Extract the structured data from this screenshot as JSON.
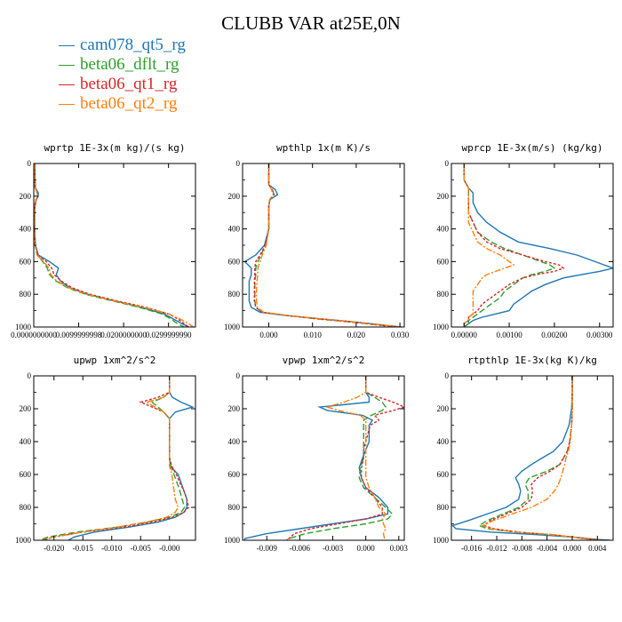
{
  "title": "CLUBB VAR at25E,0N",
  "legend": [
    {
      "label": "cam078_qt5_rg",
      "color": "#1f77b4"
    },
    {
      "label": "beta06_dflt_rg",
      "color": "#2ca02c"
    },
    {
      "label": "beta06_qt1_rg",
      "color": "#d62728"
    },
    {
      "label": "beta06_qt2_rg",
      "color": "#ff7f0e"
    }
  ],
  "chart_data": [
    {
      "type": "line",
      "title": "wprtp  1E-3x(m kg)/(s kg)",
      "xlim": [
        0.0,
        0.036
      ],
      "ylim": [
        1000,
        0
      ],
      "xticks": [
        0.0,
        0.01,
        0.02,
        0.03
      ],
      "xticklabels": [
        "0.0000000000",
        "0.0099999998",
        "0.0200000000",
        "0.0299999990"
      ],
      "yticks": [
        0,
        200,
        400,
        600,
        800,
        1000
      ],
      "y": [
        0,
        100,
        150,
        180,
        200,
        220,
        260,
        300,
        400,
        500,
        560,
        600,
        640,
        680,
        720,
        760,
        800,
        840,
        880,
        920,
        950,
        980,
        1000
      ],
      "series": [
        {
          "name": "cam078_qt5_rg",
          "x": [
            0.0003,
            0.0003,
            0.0004,
            0.001,
            0.001,
            0.0006,
            0.0003,
            0.0002,
            0.0002,
            0.0004,
            0.001,
            0.0035,
            0.0055,
            0.005,
            0.006,
            0.008,
            0.012,
            0.018,
            0.024,
            0.029,
            0.031,
            0.033,
            0.0345
          ]
        },
        {
          "name": "beta06_dflt_rg",
          "x": [
            0.0002,
            0.0002,
            0.0003,
            0.0008,
            0.0009,
            0.0005,
            0.0002,
            0.0001,
            0.0001,
            0.0003,
            0.0008,
            0.002,
            0.003,
            0.0035,
            0.005,
            0.0075,
            0.0115,
            0.0175,
            0.0235,
            0.0285,
            0.0305,
            0.032,
            0.0335
          ]
        },
        {
          "name": "beta06_qt1_rg",
          "x": [
            0.0002,
            0.0002,
            0.0003,
            0.0008,
            0.0009,
            0.0005,
            0.0002,
            0.0001,
            0.0001,
            0.0003,
            0.0009,
            0.0028,
            0.004,
            0.0045,
            0.0062,
            0.0085,
            0.0125,
            0.0185,
            0.025,
            0.03,
            0.032,
            0.0335,
            0.0345
          ]
        },
        {
          "name": "beta06_qt2_rg",
          "x": [
            0.0002,
            0.0002,
            0.0003,
            0.0008,
            0.0009,
            0.0005,
            0.0002,
            0.0001,
            0.0001,
            0.0003,
            0.0007,
            0.0022,
            0.0034,
            0.0038,
            0.0052,
            0.0078,
            0.0118,
            0.0178,
            0.0245,
            0.03,
            0.0325,
            0.0345,
            0.0355
          ]
        }
      ]
    },
    {
      "type": "line",
      "title": "wpthlp  1x(m K)/s",
      "xlim": [
        -0.006,
        0.031
      ],
      "ylim": [
        1000,
        0
      ],
      "xticks": [
        0.0,
        0.01,
        0.02,
        0.03
      ],
      "xticklabels": [
        "0.000",
        "0.010",
        "0.020",
        "0.030"
      ],
      "yticks": [
        0,
        200,
        400,
        600,
        800,
        1000
      ],
      "y": [
        0,
        100,
        130,
        160,
        190,
        220,
        260,
        300,
        400,
        500,
        560,
        600,
        640,
        680,
        720,
        780,
        840,
        880,
        910,
        930,
        950,
        970,
        990,
        1000
      ],
      "series": [
        {
          "name": "cam078_qt5_rg",
          "x": [
            0.0,
            0.0,
            0.0,
            0.0015,
            0.002,
            0.0003,
            0.0,
            0.0,
            0.0,
            -0.001,
            -0.003,
            -0.0055,
            -0.004,
            -0.004,
            -0.0045,
            -0.0045,
            -0.0045,
            -0.004,
            -0.002,
            0.004,
            0.012,
            0.02,
            0.027,
            0.03
          ]
        },
        {
          "name": "beta06_dflt_rg",
          "x": [
            0.0,
            0.0,
            0.0,
            0.0008,
            0.0012,
            0.0002,
            0.0,
            0.0,
            0.0,
            -0.0008,
            -0.0018,
            -0.0025,
            -0.003,
            -0.003,
            -0.0032,
            -0.0032,
            -0.0032,
            -0.003,
            -0.0015,
            0.004,
            0.011,
            0.019,
            0.026,
            0.029
          ]
        },
        {
          "name": "beta06_qt1_rg",
          "x": [
            0.0,
            0.0,
            0.0,
            0.0008,
            0.0012,
            0.0002,
            0.0,
            0.0,
            0.0,
            -0.0008,
            -0.002,
            -0.003,
            -0.0032,
            -0.0032,
            -0.0033,
            -0.0033,
            -0.0033,
            -0.003,
            -0.0015,
            0.004,
            0.011,
            0.019,
            0.026,
            0.029
          ]
        },
        {
          "name": "beta06_qt2_rg",
          "x": [
            0.0,
            0.0,
            0.0,
            0.0006,
            0.001,
            0.0002,
            0.0,
            0.0,
            0.0,
            -0.0006,
            -0.0015,
            -0.002,
            -0.0025,
            -0.0025,
            -0.0027,
            -0.0028,
            -0.0028,
            -0.0026,
            -0.0012,
            0.0045,
            0.012,
            0.02,
            0.027,
            0.0305
          ]
        }
      ]
    },
    {
      "type": "line",
      "title": "wprcp  1E-3x(m/s) (kg/kg)",
      "xlim": [
        -0.00028,
        0.0033
      ],
      "ylim": [
        1000,
        0
      ],
      "xticks": [
        0.0,
        0.001,
        0.002,
        0.003
      ],
      "xticklabels": [
        "0.00000",
        "0.00100",
        "0.00200",
        "0.00300"
      ],
      "yticks": [
        0,
        200,
        400,
        600,
        800,
        1000
      ],
      "y": [
        0,
        100,
        150,
        180,
        200,
        240,
        300,
        360,
        420,
        480,
        520,
        560,
        600,
        620,
        640,
        660,
        680,
        700,
        740,
        780,
        820,
        860,
        900,
        920,
        940,
        960,
        980,
        1000
      ],
      "series": [
        {
          "name": "cam078_qt5_rg",
          "x": [
            0.0,
            0.0,
            0.0001,
            0.0002,
            0.0002,
            0.0002,
            0.0003,
            0.0005,
            0.0008,
            0.0012,
            0.0019,
            0.0025,
            0.0029,
            0.0031,
            0.0033,
            0.003,
            0.0026,
            0.0022,
            0.0018,
            0.0015,
            0.0013,
            0.0011,
            0.001,
            0.0007,
            0.0004,
            0.0002,
            0.0001,
            0.0
          ]
        },
        {
          "name": "beta06_dflt_rg",
          "x": [
            0.0,
            0.0,
            0.0001,
            0.0001,
            0.0001,
            0.0001,
            0.0001,
            0.0002,
            0.0003,
            0.0006,
            0.0009,
            0.0013,
            0.0017,
            0.0019,
            0.002,
            0.0018,
            0.0015,
            0.0013,
            0.0011,
            0.0009,
            0.0008,
            0.0006,
            0.0004,
            0.0003,
            0.0002,
            0.0001,
            0.0001,
            0.0
          ]
        },
        {
          "name": "beta06_qt1_rg",
          "x": [
            0.0,
            0.0,
            0.0001,
            0.0001,
            0.0001,
            0.0001,
            0.0001,
            0.0002,
            0.0003,
            0.0005,
            0.0008,
            0.0013,
            0.0018,
            0.0021,
            0.0022,
            0.002,
            0.0016,
            0.0013,
            0.001,
            0.0008,
            0.0006,
            0.0004,
            0.0003,
            0.0002,
            0.0001,
            0.0001,
            0.0,
            0.0
          ]
        },
        {
          "name": "beta06_qt2_rg",
          "x": [
            0.0,
            0.0,
            0.0001,
            0.0001,
            0.0001,
            0.0001,
            0.0001,
            0.0001,
            0.0002,
            0.0003,
            0.0005,
            0.0008,
            0.001,
            0.0011,
            0.0009,
            0.0007,
            0.0005,
            0.0004,
            0.0003,
            0.0002,
            0.0002,
            0.0002,
            0.0002,
            0.0002,
            0.0001,
            0.0001,
            0.0,
            0.0
          ]
        }
      ]
    },
    {
      "type": "line",
      "title": "upwp  1xm^2/s^2",
      "xlim": [
        -0.0235,
        0.0045
      ],
      "ylim": [
        1000,
        0
      ],
      "xticks": [
        -0.02,
        -0.015,
        -0.01,
        -0.005,
        0.0
      ],
      "xticklabels": [
        "-0.020",
        "-0.015",
        "-0.010",
        "-0.005",
        "-0.000"
      ],
      "yticks": [
        0,
        200,
        400,
        600,
        800,
        1000
      ],
      "y": [
        0,
        100,
        130,
        160,
        190,
        220,
        260,
        300,
        350,
        400,
        450,
        500,
        550,
        600,
        650,
        700,
        750,
        800,
        830,
        860,
        890,
        920,
        950,
        980,
        1000
      ],
      "series": [
        {
          "name": "cam078_qt5_rg",
          "x": [
            0.0,
            0.0,
            0.0005,
            0.002,
            0.004,
            0.001,
            0.0,
            0.0,
            0.0,
            0.0,
            0.0,
            0.0,
            0.0002,
            0.0015,
            0.002,
            0.0025,
            0.003,
            0.003,
            0.0025,
            0.001,
            -0.002,
            -0.007,
            -0.013,
            -0.0165,
            -0.0175
          ]
        },
        {
          "name": "beta06_dflt_rg",
          "x": [
            0.0,
            0.0,
            -0.001,
            -0.003,
            -0.002,
            -0.001,
            0.0,
            0.0,
            0.0,
            0.0,
            0.0,
            0.0,
            0.0002,
            0.0008,
            0.0013,
            0.0018,
            0.0022,
            0.0026,
            0.002,
            0.0,
            -0.004,
            -0.009,
            -0.016,
            -0.021,
            -0.0225
          ]
        },
        {
          "name": "beta06_qt1_rg",
          "x": [
            0.0,
            0.0,
            -0.002,
            -0.005,
            -0.003,
            -0.001,
            0.0,
            0.0,
            0.0,
            0.0,
            0.0,
            0.0,
            0.0004,
            0.0012,
            0.0018,
            0.0025,
            0.003,
            0.0033,
            0.0025,
            0.0005,
            -0.003,
            -0.008,
            -0.015,
            -0.02,
            -0.022
          ]
        },
        {
          "name": "beta06_qt2_rg",
          "x": [
            0.0,
            0.0,
            -0.001,
            -0.004,
            -0.0025,
            -0.001,
            0.0,
            0.0,
            0.0,
            0.0,
            0.0,
            0.0,
            0.0,
            0.0004,
            0.0006,
            0.0008,
            0.001,
            0.0015,
            0.001,
            -0.0005,
            -0.004,
            -0.009,
            -0.015,
            -0.02,
            -0.022
          ]
        }
      ]
    },
    {
      "type": "line",
      "title": "vpwp  1xm^2/s^2",
      "xlim": [
        -0.0112,
        0.0035
      ],
      "ylim": [
        1000,
        0
      ],
      "xticks": [
        -0.009,
        -0.006,
        -0.003,
        0.0,
        0.003
      ],
      "xticklabels": [
        "-0.009",
        "-0.006",
        "-0.003",
        "0.000",
        "0.003"
      ],
      "yticks": [
        0,
        200,
        400,
        600,
        800,
        1000
      ],
      "y": [
        0,
        100,
        130,
        160,
        190,
        210,
        240,
        270,
        300,
        350,
        400,
        450,
        500,
        560,
        620,
        680,
        740,
        800,
        840,
        870,
        900,
        930,
        960,
        990,
        1000
      ],
      "series": [
        {
          "name": "cam078_qt5_rg",
          "x": [
            0.0,
            0.0,
            0.0003,
            0.0003,
            -0.0042,
            -0.0035,
            -0.0003,
            0.0006,
            0.0003,
            0.0003,
            0.0003,
            0.0,
            -0.0003,
            -0.0006,
            -0.0004,
            0.0,
            0.0012,
            0.002,
            0.002,
            0.0,
            -0.003,
            -0.006,
            -0.009,
            -0.011,
            -0.011
          ]
        },
        {
          "name": "beta06_dflt_rg",
          "x": [
            0.0,
            0.0,
            0.0008,
            0.0015,
            0.0018,
            0.0015,
            0.0005,
            -0.0002,
            -0.0002,
            -0.0002,
            -0.0002,
            -0.0002,
            -0.0002,
            -0.0005,
            -0.0006,
            -0.0002,
            0.0008,
            0.0018,
            0.0024,
            0.002,
            0.0,
            -0.003,
            -0.0055,
            -0.007,
            -0.0072
          ]
        },
        {
          "name": "beta06_qt1_rg",
          "x": [
            0.0,
            0.0,
            0.0012,
            0.0025,
            0.0035,
            0.0025,
            0.0008,
            0.0012,
            0.0004,
            0.0002,
            0.0,
            -0.0002,
            -0.0002,
            -0.0004,
            -0.0004,
            0.0,
            0.0008,
            0.0015,
            0.0015,
            0.0,
            -0.0025,
            -0.005,
            -0.0065,
            -0.007,
            -0.007
          ]
        },
        {
          "name": "beta06_qt2_rg",
          "x": [
            0.0,
            0.0,
            -0.0008,
            -0.002,
            -0.0035,
            -0.0025,
            -0.0005,
            0.0,
            0.0,
            0.0,
            0.0,
            0.0,
            0.0,
            0.0,
            0.0,
            0.0003,
            0.0008,
            0.0012,
            0.0018,
            0.0015,
            0.0016,
            0.0018,
            0.0016,
            0.0017,
            0.0017
          ]
        }
      ]
    },
    {
      "type": "line",
      "title": "rtpthlp  1E-3x(kg K)/kg",
      "xlim": [
        -0.0192,
        0.0065
      ],
      "ylim": [
        1000,
        0
      ],
      "xticks": [
        -0.016,
        -0.012,
        -0.008,
        -0.004,
        0.0,
        0.004
      ],
      "xticklabels": [
        "-0.016",
        "-0.012",
        "-0.008",
        "-0.004",
        "0.000",
        "0.004"
      ],
      "yticks": [
        0,
        200,
        400,
        600,
        800,
        1000
      ],
      "y": [
        0,
        100,
        200,
        300,
        400,
        460,
        500,
        540,
        580,
        620,
        660,
        700,
        750,
        800,
        840,
        880,
        910,
        930,
        950,
        965,
        980,
        995,
        1000
      ],
      "series": [
        {
          "name": "cam078_qt5_rg",
          "x": [
            0.0,
            0.0,
            -0.0001,
            -0.0005,
            -0.0015,
            -0.003,
            -0.0048,
            -0.0065,
            -0.008,
            -0.009,
            -0.0085,
            -0.0082,
            -0.0085,
            -0.0105,
            -0.0135,
            -0.0165,
            -0.019,
            -0.0185,
            -0.013,
            -0.006,
            0.0,
            0.004,
            0.006
          ]
        },
        {
          "name": "beta06_dflt_rg",
          "x": [
            0.0,
            0.0,
            0.0,
            -0.0001,
            -0.0004,
            -0.0008,
            -0.0014,
            -0.002,
            -0.004,
            -0.0068,
            -0.0075,
            -0.007,
            -0.007,
            -0.0085,
            -0.011,
            -0.0135,
            -0.0148,
            -0.0135,
            -0.009,
            -0.004,
            0.0,
            0.003,
            0.005
          ]
        },
        {
          "name": "beta06_qt1_rg",
          "x": [
            0.0,
            0.0,
            0.0,
            -0.0001,
            -0.0004,
            -0.0008,
            -0.0014,
            -0.002,
            -0.0035,
            -0.0055,
            -0.0065,
            -0.0063,
            -0.0065,
            -0.008,
            -0.0105,
            -0.013,
            -0.014,
            -0.0125,
            -0.0085,
            -0.0035,
            0.0,
            0.003,
            0.005
          ]
        },
        {
          "name": "beta06_qt2_rg",
          "x": [
            0.0,
            0.0,
            0.0,
            -0.0001,
            -0.0003,
            -0.0006,
            -0.001,
            -0.0012,
            -0.0015,
            -0.0018,
            -0.0022,
            -0.0028,
            -0.004,
            -0.0065,
            -0.0095,
            -0.0125,
            -0.0142,
            -0.013,
            -0.009,
            -0.0035,
            0.0,
            0.003,
            0.005
          ]
        }
      ]
    }
  ]
}
